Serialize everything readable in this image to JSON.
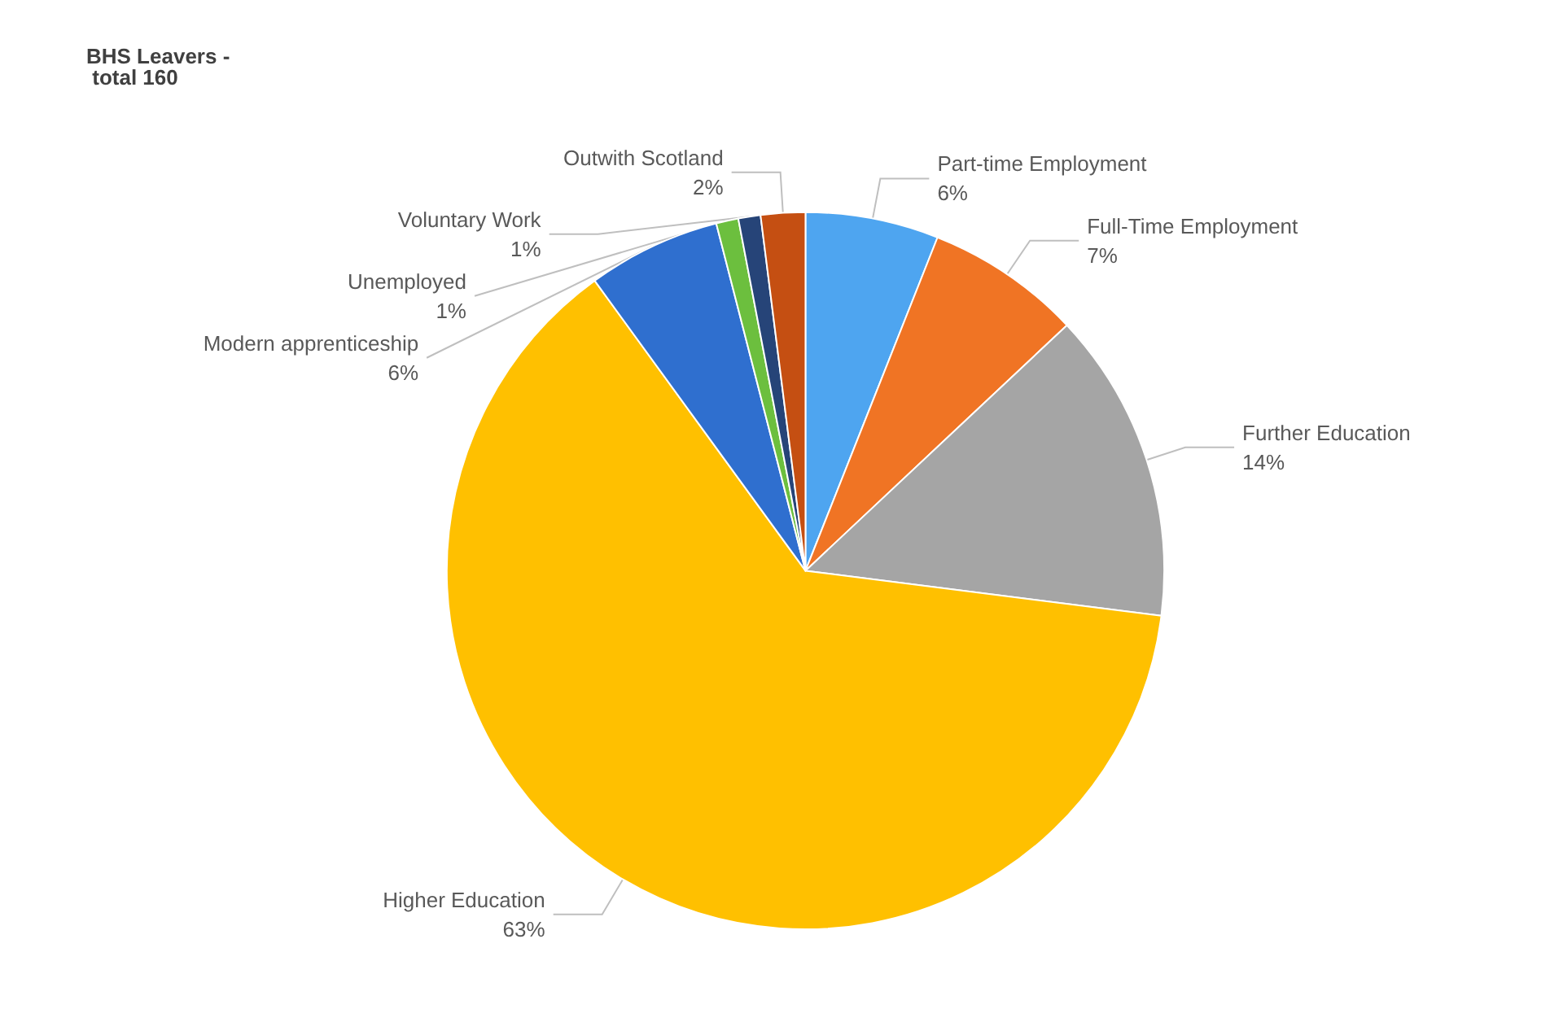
{
  "chart_data": {
    "type": "pie",
    "title": "BHS Leavers - total 160",
    "categories": [
      "Part-time Employment",
      "Full-Time Employment",
      "Further Education",
      "Higher Education",
      "Modern apprenticeship",
      "Unemployed",
      "Voluntary Work",
      "Outwith Scotland"
    ],
    "values": [
      6,
      7,
      14,
      63,
      6,
      1,
      1,
      2
    ],
    "value_labels": [
      "6%",
      "7%",
      "14%",
      "63%",
      "6%",
      "1%",
      "1%",
      "2%"
    ],
    "colors": [
      "#4ea5f0",
      "#f07424",
      "#a5a5a5",
      "#ffc000",
      "#2f6fcf",
      "#6cbf3e",
      "#264478",
      "#c54f12"
    ],
    "legend": false
  }
}
